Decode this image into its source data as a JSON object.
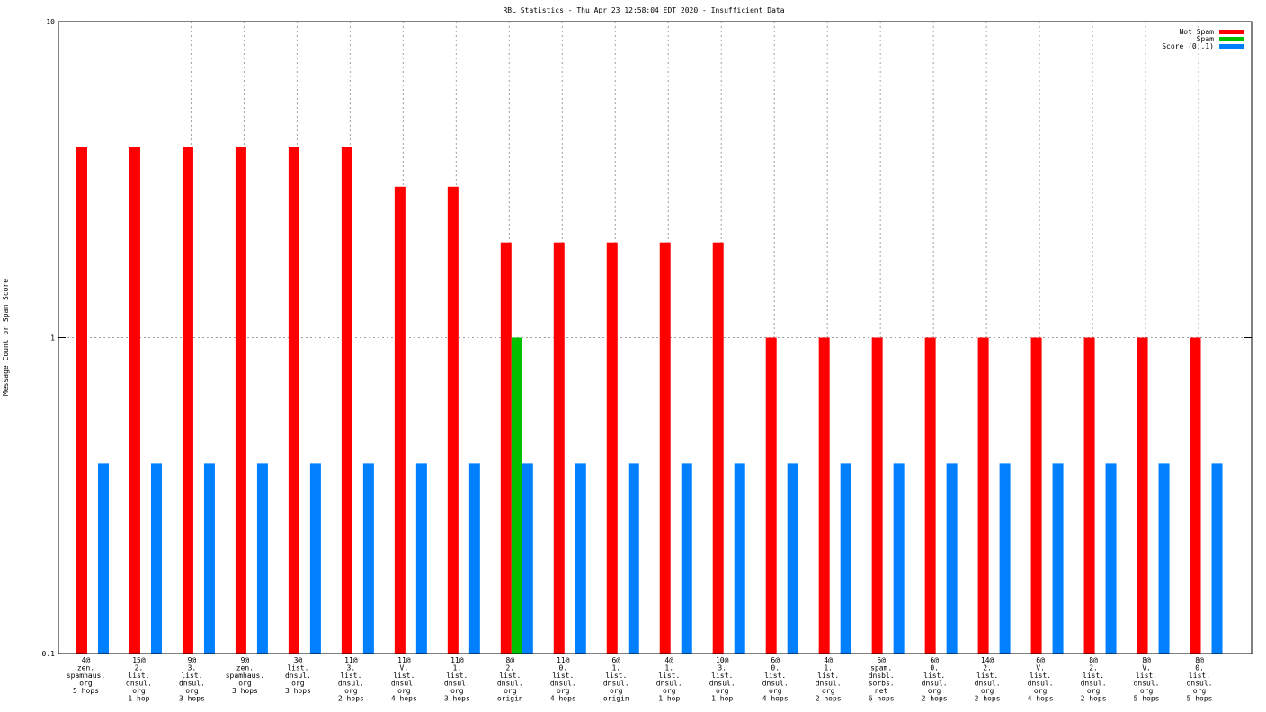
{
  "chart_data": {
    "type": "bar",
    "title": "RBL Statistics - Thu Apr 23 12:58:04 EDT 2020 - Insufficient Data",
    "y_label": "Message Count or Spam Score",
    "log_y": true,
    "grid": true,
    "legend": "top-right",
    "ylim": [
      0.1,
      10
    ],
    "yticks": [
      0.1,
      1,
      10
    ],
    "categories": [
      "4@\nzen.\nspamhaus.\norg\n5 hops",
      "15@\n2.\nlist.\ndnsul.\norg\n1 hop",
      "9@\n3.\nlist.\ndnsul.\norg\n3 hops",
      "9@\nzen.\nspamhaus.\norg\n3 hops",
      "3@\nlist.\ndnsul.\norg\n3 hops",
      "11@\n3.\nlist.\ndnsul.\norg\n2 hops",
      "11@\nV.\nlist.\ndnsul.\norg\n4 hops",
      "11@\n1.\nlist.\ndnsul.\norg\n3 hops",
      "8@\n2.\nlist.\ndnsul.\norg\norigin",
      "11@\n0.\nlist.\ndnsul.\norg\n4 hops",
      "6@\n1.\nlist.\ndnsul.\norg\norigin",
      "4@\n1.\nlist.\ndnsul.\norg\n1 hop",
      "10@\n3.\nlist.\ndnsul.\norg\n1 hop",
      "6@\n0.\nlist.\ndnsul.\norg\n4 hops",
      "4@\n1.\nlist.\ndnsul.\norg\n2 hops",
      "6@\nspam.\ndnsbl.\nsorbs.\nnet\n6 hops",
      "6@\n0.\nlist.\ndnsul.\norg\n2 hops",
      "14@\n2.\nlist.\ndnsul.\norg\n2 hops",
      "6@\nV.\nlist.\ndnsul.\norg\n4 hops",
      "8@\n2.\nlist.\ndnsul.\norg\n2 hops",
      "8@\nV.\nlist.\ndnsul.\norg\n5 hops",
      "8@\n0.\nlist.\ndnsul.\norg\n5 hops"
    ],
    "series": [
      {
        "name": "Not Spam",
        "color": "#ff0000",
        "values": [
          4,
          4,
          4,
          4,
          4,
          4,
          3,
          3,
          2,
          2,
          2,
          2,
          2,
          1,
          1,
          1,
          1,
          1,
          1,
          1,
          1,
          1
        ]
      },
      {
        "name": "Spam",
        "color": "#00c000",
        "values": [
          null,
          null,
          null,
          null,
          null,
          null,
          null,
          null,
          1,
          null,
          null,
          null,
          null,
          null,
          null,
          null,
          null,
          null,
          null,
          null,
          null,
          null
        ]
      },
      {
        "name": "Score (0..1)",
        "color": "#0080ff",
        "values": [
          0.4,
          0.4,
          0.4,
          0.4,
          0.4,
          0.4,
          0.4,
          0.4,
          0.4,
          0.4,
          0.4,
          0.4,
          0.4,
          0.4,
          0.4,
          0.4,
          0.4,
          0.4,
          0.4,
          0.4,
          0.4,
          0.4
        ]
      }
    ]
  }
}
